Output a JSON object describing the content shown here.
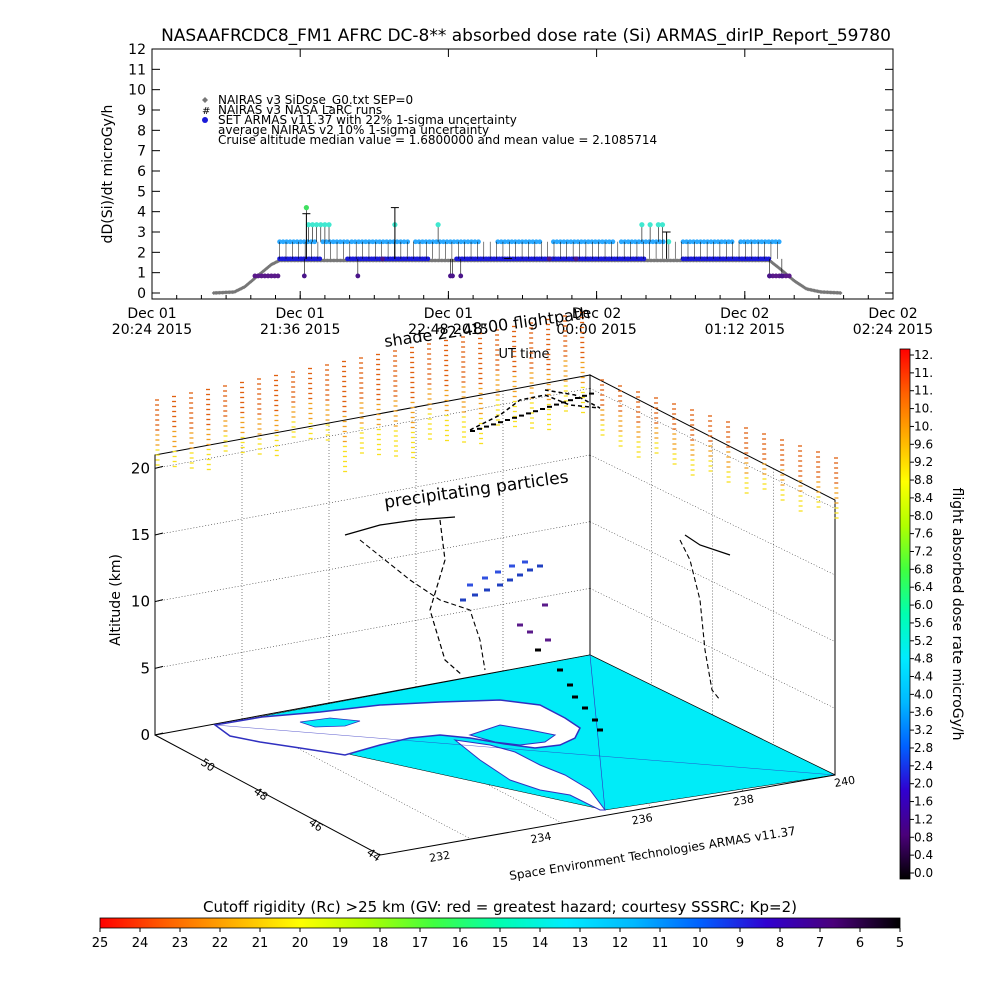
{
  "title": "NASAAFRCDC8_FM1 AFRC DC-8** absorbed dose rate (Si) ARMAS_dirIP_Report_59780",
  "chart_data": [
    {
      "type": "scatter",
      "ylabel": "dD(Si)/dt microGy/h",
      "xlabel": "UT time",
      "ylim": [
        0,
        12
      ],
      "yticks": [
        "0",
        "1",
        "2",
        "3",
        "4",
        "5",
        "6",
        "7",
        "8",
        "9",
        "10",
        "11",
        "12"
      ],
      "xticks": [
        {
          "line1": "Dec 01",
          "line2": "20:24 2015",
          "t": 0
        },
        {
          "line1": "Dec 01",
          "line2": "21:36 2015",
          "t": 72
        },
        {
          "line1": "Dec 01",
          "line2": "22:48 2015",
          "t": 144
        },
        {
          "line1": "Dec 02",
          "line2": "00:00 2015",
          "t": 216
        },
        {
          "line1": "Dec 02",
          "line2": "01:12 2015",
          "t": 288
        },
        {
          "line1": "Dec 02",
          "line2": "02:24 2015",
          "t": 360
        }
      ],
      "xlim_minutes": [
        0,
        360
      ],
      "legend": [
        {
          "marker": "diamond",
          "text": "NAIRAS v3 SiDose_G0.txt SEP=0"
        },
        {
          "marker": "hash",
          "text": "NAIRAS v3 NASA LaRC runs"
        },
        {
          "marker": "dot-blue",
          "text": "SET ARMAS v11.37 with 22% 1-sigma uncertainty"
        },
        {
          "marker": "none",
          "text": "average NAIRAS v2 10% 1-sigma uncertainty"
        },
        {
          "marker": "none",
          "text": "Cruise altitude median value = 1.6800000 and mean value = 2.1085714"
        }
      ],
      "legend_placement": "top-left",
      "nairas_profile": [
        [
          30,
          0
        ],
        [
          40,
          0.05
        ],
        [
          45,
          0.3
        ],
        [
          52,
          0.9
        ],
        [
          58,
          1.4
        ],
        [
          62,
          1.6
        ],
        [
          300,
          1.6
        ],
        [
          305,
          1.2
        ],
        [
          312,
          0.6
        ],
        [
          318,
          0.2
        ],
        [
          325,
          0.05
        ],
        [
          335,
          0
        ]
      ],
      "armas_levels": [
        0.84,
        1.68,
        2.52,
        3.36,
        4.2
      ],
      "armas_low_segments": [
        [
          50,
          62
        ],
        [
          300,
          310
        ]
      ],
      "armas_high_segments": [
        [
          62,
          80
        ],
        [
          83,
          95
        ],
        [
          97,
          125
        ],
        [
          128,
          160
        ],
        [
          168,
          190
        ],
        [
          195,
          225
        ],
        [
          228,
          250
        ],
        [
          258,
          282
        ],
        [
          286,
          305
        ]
      ],
      "armas_base_segments": [
        [
          62,
          82
        ],
        [
          95,
          134
        ],
        [
          148,
          240
        ],
        [
          258,
          300
        ]
      ],
      "armas_peak_points": [
        [
          75,
          4.2
        ],
        [
          76,
          3.36
        ],
        [
          78,
          3.36
        ],
        [
          80,
          3.36
        ],
        [
          82,
          3.36
        ],
        [
          84,
          3.36
        ],
        [
          86,
          3.36
        ],
        [
          118,
          3.36
        ],
        [
          139,
          3.36
        ],
        [
          238,
          3.36
        ],
        [
          242,
          3.36
        ],
        [
          246,
          3.36
        ],
        [
          248,
          3.36
        ],
        [
          251,
          2.52
        ]
      ],
      "armas_dip_points": [
        [
          74,
          0.84
        ],
        [
          100,
          0.84
        ],
        [
          112,
          1.68
        ],
        [
          145,
          0.84
        ],
        [
          146,
          0.84
        ],
        [
          150,
          0.84
        ],
        [
          193,
          1.68
        ],
        [
          206,
          1.68
        ],
        [
          300,
          0.84
        ],
        [
          306,
          0.84
        ]
      ],
      "uncertainty_bars": [
        [
          118,
          4.2
        ],
        [
          250,
          3.0
        ],
        [
          173,
          1.7
        ],
        [
          75,
          3.9
        ]
      ]
    },
    {
      "type": "scatter",
      "title": "",
      "zlabel": "Altitude (km)",
      "zticks": [
        "0",
        "5",
        "10",
        "15",
        "20"
      ],
      "lat_ticks": [
        "44",
        "46",
        "48",
        "50"
      ],
      "lon_ticks": [
        "232",
        "234",
        "236",
        "238",
        "240"
      ],
      "annotations": [
        "shade 22:48:00 flightpath",
        "precipitating particles"
      ],
      "credit": "Space Environment Technologies ARMAS v11.37",
      "colorbar": {
        "label": "flight absorbed dose rate microGy/h",
        "ticks": [
          "12.",
          "11.",
          "11.",
          "10.",
          "10.",
          "9.6",
          "9.2",
          "8.8",
          "8.4",
          "8.0",
          "7.6",
          "7.2",
          "6.8",
          "6.4",
          "6.0",
          "5.6",
          "5.2",
          "4.8",
          "4.4",
          "4.0",
          "3.6",
          "3.2",
          "2.8",
          "2.4",
          "2.0",
          "1.6",
          "1.2",
          "0.8",
          "0.4",
          "0.0"
        ]
      },
      "flight_path_km": [
        [
          0,
          0
        ],
        [
          0.6,
          2
        ],
        [
          1.2,
          5
        ],
        [
          1.6,
          7
        ],
        [
          2.0,
          9
        ],
        [
          2.4,
          10.5
        ],
        [
          2.7,
          11.5
        ]
      ]
    },
    {
      "type": "heatmap",
      "title": "Cutoff rigidity (Rc) >25 km (GV: red = greatest hazard; courtesy SSSRC; Kp=2)",
      "ticks": [
        "25",
        "24",
        "23",
        "22",
        "21",
        "20",
        "19",
        "18",
        "17",
        "16",
        "15",
        "14",
        "13",
        "12",
        "11",
        "10",
        "9",
        "8",
        "7",
        "6",
        "5"
      ]
    }
  ],
  "colors": {
    "dose_scale": [
      "#000000",
      "#4a007a",
      "#3000d0",
      "#0060ff",
      "#00b8ff",
      "#00ecff",
      "#00ffb0",
      "#40ff40",
      "#b0ff00",
      "#ffff00",
      "#ffb000",
      "#ff6000",
      "#ff0000"
    ],
    "ocean": "#00ecf8",
    "land": "#ffffff",
    "coast": "#3030c0"
  }
}
